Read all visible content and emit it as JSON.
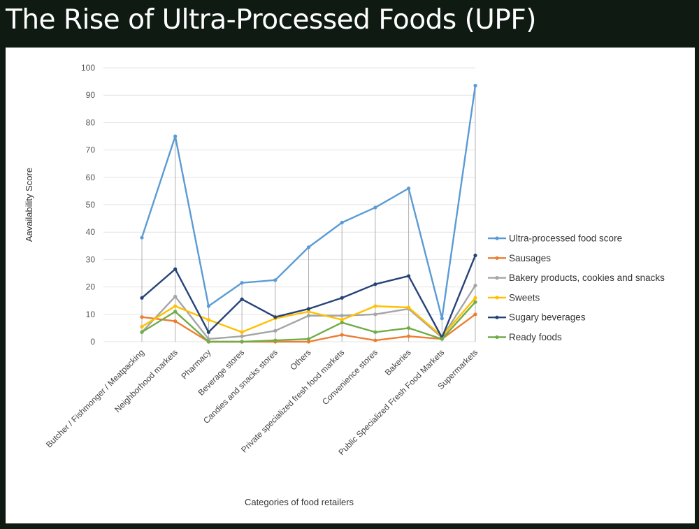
{
  "slide": {
    "title": "The Rise of Ultra-Processed Foods (UPF)"
  },
  "chart_data": {
    "type": "line",
    "title": "",
    "xlabel": "Categories of food retailers",
    "ylabel": "Aavailability Score",
    "ylim": [
      0,
      100
    ],
    "yticks": [
      0,
      10,
      20,
      30,
      40,
      50,
      60,
      70,
      80,
      90,
      100
    ],
    "grid": true,
    "legend_position": "right",
    "categories": [
      "Butcher / Fishmonger / Meatpacking",
      "Neighborhood markets",
      "Pharmacy",
      "Beverage stores",
      "Candies and snacks stores",
      "Others",
      "Private specialized fresh food markets",
      "Convenience stores",
      "Bakeries",
      "Public Specialized Fresh Food Markets",
      "Supermarkets"
    ],
    "series": [
      {
        "name": "Ultra-processed food score",
        "color": "#5b9bd5",
        "values": [
          38,
          75,
          13,
          21.5,
          22.5,
          34.5,
          43.5,
          49,
          56,
          8.5,
          93.5
        ]
      },
      {
        "name": "Sausages",
        "color": "#ed7d31",
        "values": [
          9,
          7.5,
          0,
          0,
          0,
          0,
          2.5,
          0.5,
          2,
          1,
          10
        ]
      },
      {
        "name": "Bakery products, cookies and snacks",
        "color": "#a5a5a5",
        "values": [
          3.5,
          16.5,
          1,
          2,
          4,
          9.5,
          9.5,
          10,
          12,
          1.5,
          20.5
        ]
      },
      {
        "name": "Sweets",
        "color": "#ffc000",
        "values": [
          5.5,
          13,
          8,
          3.5,
          8.5,
          11,
          8,
          13,
          12.5,
          2,
          16
        ]
      },
      {
        "name": "Sugary beverages",
        "color": "#264478",
        "values": [
          16,
          26.5,
          3.5,
          15.5,
          9,
          12,
          16,
          21,
          24,
          1.5,
          31.5
        ]
      },
      {
        "name": "Ready foods",
        "color": "#70ad47",
        "values": [
          3.5,
          11,
          0,
          0,
          0.5,
          1,
          7,
          3.5,
          5,
          1,
          14.5
        ]
      }
    ]
  }
}
